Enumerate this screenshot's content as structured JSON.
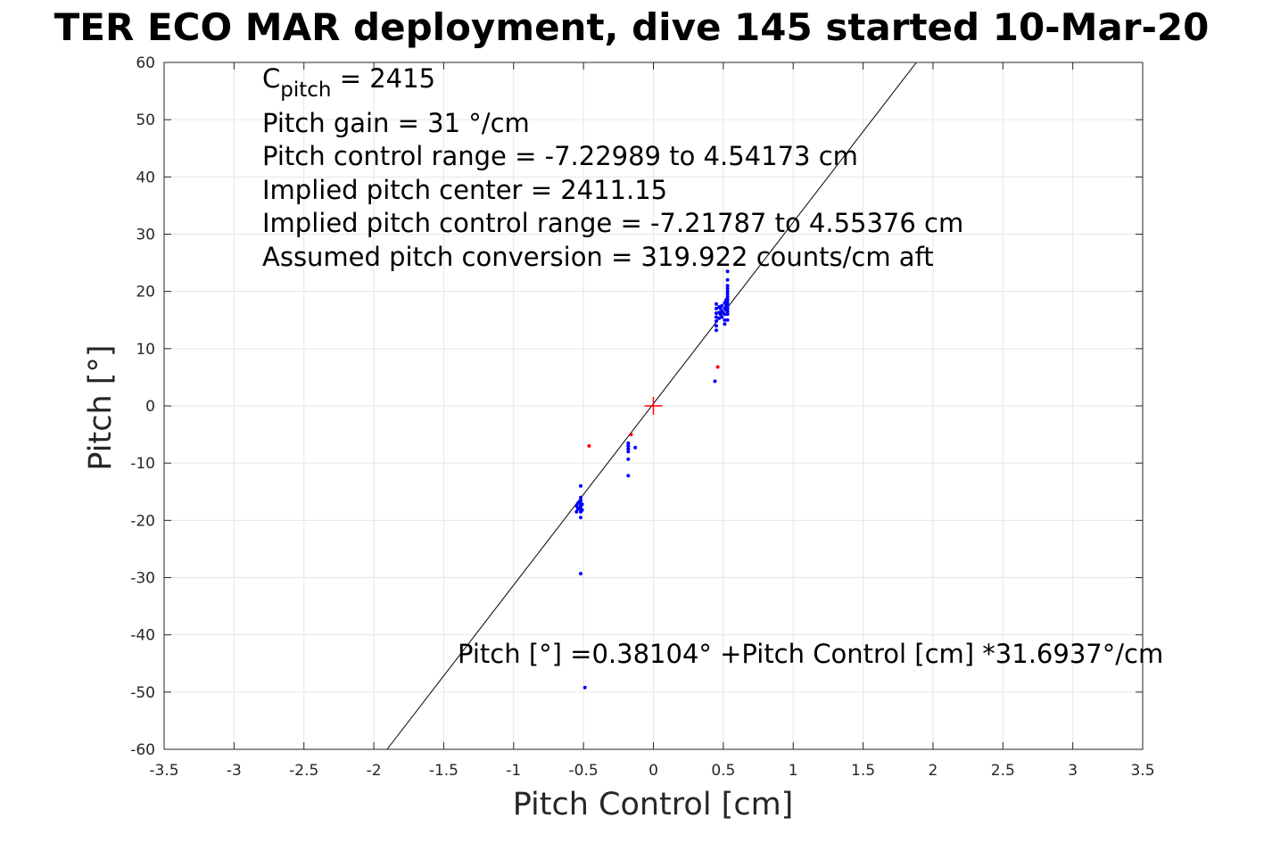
{
  "title": "TER ECO MAR deployment, dive 145 started 10-Mar-20",
  "chart_data": {
    "type": "scatter",
    "title": "TER ECO MAR deployment, dive 145 started 10-Mar-20",
    "xlabel": "Pitch Control [cm]",
    "ylabel": "Pitch [°]",
    "xlim": [
      -3.5,
      3.5
    ],
    "ylim": [
      -60,
      60
    ],
    "xticks": [
      -3.5,
      -3,
      -2.5,
      -2,
      -1.5,
      -1,
      -0.5,
      0,
      0.5,
      1,
      1.5,
      2,
      2.5,
      3,
      3.5
    ],
    "yticks": [
      -60,
      -50,
      -40,
      -30,
      -20,
      -10,
      0,
      10,
      20,
      30,
      40,
      50,
      60
    ],
    "xtick_labels": [
      "-3.5",
      "-3",
      "-2.5",
      "-2",
      "-1.5",
      "-1",
      "-0.5",
      "0",
      "0.5",
      "1",
      "1.5",
      "2",
      "2.5",
      "3",
      "3.5"
    ],
    "ytick_labels": [
      "-60",
      "-50",
      "-40",
      "-30",
      "-20",
      "-10",
      "0",
      "10",
      "20",
      "30",
      "40",
      "50",
      "60"
    ],
    "grid": true,
    "annotations": {
      "c_pitch_main": "C",
      "c_pitch_sub": "pitch",
      "c_pitch_value": " = 2415",
      "pitch_gain": "Pitch gain = 31 °/cm",
      "pitch_control_range": "Pitch control range = -7.22989 to 4.54173 cm",
      "implied_pitch_center": "Implied pitch center = 2411.15",
      "implied_pitch_control_range": "Implied pitch control range = -7.21787 to 4.55376 cm",
      "assumed_pitch_conversion": "Assumed pitch conversion = 319.922 counts/cm aft",
      "fit_equation": "Pitch [°] =0.38104° +Pitch Control [cm] *31.6937°/cm"
    },
    "fit_line": {
      "intercept": 0.38104,
      "slope": 31.6937,
      "color": "#000000"
    },
    "center_marker": {
      "x": 0,
      "y": 0,
      "color": "#ff0000"
    },
    "series": [
      {
        "color": "#0000ff",
        "points": [
          [
            0.53,
            23.5
          ],
          [
            0.53,
            22.0
          ],
          [
            0.53,
            21.0
          ],
          [
            0.53,
            20.5
          ],
          [
            0.53,
            20.0
          ],
          [
            0.53,
            19.5
          ],
          [
            0.53,
            19.0
          ],
          [
            0.53,
            18.5
          ],
          [
            0.53,
            18.0
          ],
          [
            0.53,
            17.5
          ],
          [
            0.53,
            17.0
          ],
          [
            0.53,
            16.5
          ],
          [
            0.53,
            16.0
          ],
          [
            0.53,
            15.0
          ],
          [
            0.52,
            18.5
          ],
          [
            0.52,
            17.5
          ],
          [
            0.52,
            16.8
          ],
          [
            0.51,
            18.0
          ],
          [
            0.51,
            17.0
          ],
          [
            0.51,
            16.0
          ],
          [
            0.51,
            15.0
          ],
          [
            0.51,
            14.3
          ],
          [
            0.49,
            17.5
          ],
          [
            0.49,
            16.5
          ],
          [
            0.49,
            15.5
          ],
          [
            0.48,
            17.0
          ],
          [
            0.48,
            16.0
          ],
          [
            0.47,
            17.3
          ],
          [
            0.47,
            16.3
          ],
          [
            0.47,
            15.3
          ],
          [
            0.45,
            17.8
          ],
          [
            0.45,
            17.0
          ],
          [
            0.45,
            16.2
          ],
          [
            0.45,
            15.5
          ],
          [
            0.45,
            14.8
          ],
          [
            0.45,
            14.0
          ],
          [
            0.45,
            13.2
          ],
          [
            0.44,
            4.3
          ],
          [
            -0.18,
            -6.5
          ],
          [
            -0.18,
            -7.0
          ],
          [
            -0.18,
            -7.5
          ],
          [
            -0.18,
            -8.0
          ],
          [
            -0.18,
            -9.3
          ],
          [
            -0.18,
            -12.2
          ],
          [
            -0.13,
            -7.3
          ],
          [
            -0.52,
            -14.0
          ],
          [
            -0.52,
            -16.0
          ],
          [
            -0.52,
            -16.5
          ],
          [
            -0.52,
            -17.0
          ],
          [
            -0.52,
            -17.5
          ],
          [
            -0.52,
            -18.0
          ],
          [
            -0.52,
            -18.5
          ],
          [
            -0.52,
            -19.5
          ],
          [
            -0.51,
            -17.2
          ],
          [
            -0.51,
            -18.2
          ],
          [
            -0.53,
            -16.8
          ],
          [
            -0.53,
            -17.8
          ],
          [
            -0.54,
            -17.0
          ],
          [
            -0.54,
            -18.0
          ],
          [
            -0.55,
            -17.5
          ],
          [
            -0.55,
            -18.5
          ],
          [
            -0.52,
            -29.3
          ],
          [
            -0.49,
            -49.2
          ]
        ]
      },
      {
        "color": "#ff0000",
        "points": [
          [
            0.46,
            6.8
          ],
          [
            -0.46,
            -7.0
          ],
          [
            -0.16,
            -5.0
          ]
        ]
      }
    ]
  }
}
